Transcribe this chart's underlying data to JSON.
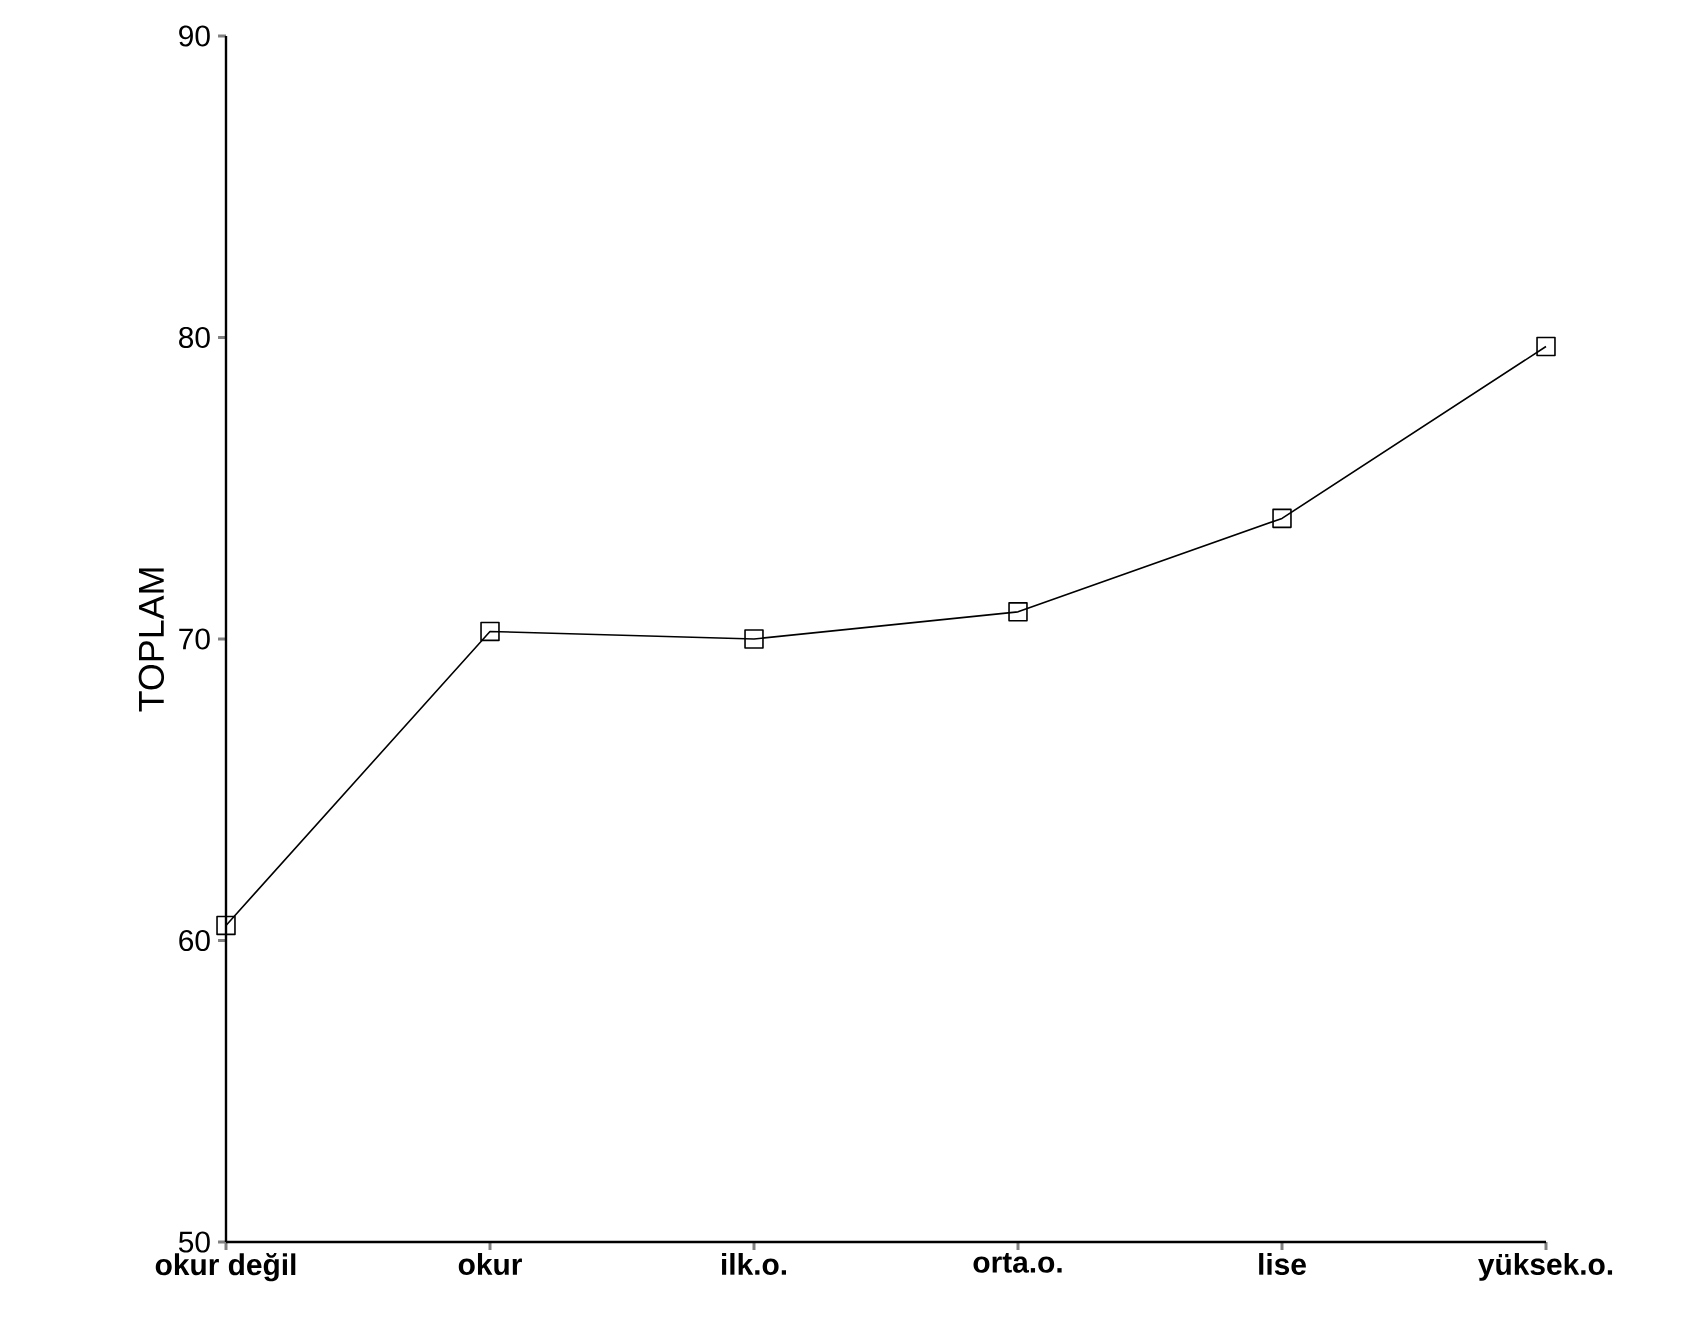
{
  "chart_data": {
    "type": "line",
    "ylabel": "TOPLAM",
    "categories": [
      "okur değil",
      "okur",
      "ilk.o.",
      "orta.o.",
      "lise",
      "yüksek.o."
    ],
    "values": [
      60.5,
      70.25,
      70.0,
      70.9,
      74.0,
      79.7
    ],
    "color": "#000000",
    "marker": "square",
    "line_style": "solid",
    "ylim": [
      50,
      90
    ],
    "yticks": [
      50,
      60,
      70,
      80,
      90
    ]
  }
}
